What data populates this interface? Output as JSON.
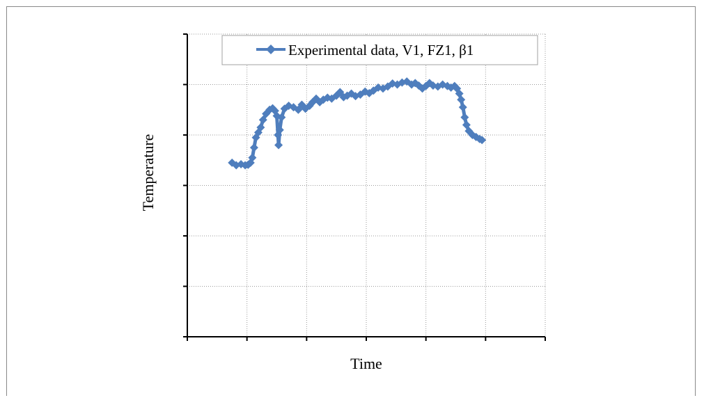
{
  "chart_data": {
    "type": "line",
    "title": "",
    "xlabel": "Time",
    "ylabel": "Temperature",
    "xlim": [
      0,
      6
    ],
    "ylim": [
      0,
      6
    ],
    "x_ticks_labeled": false,
    "y_ticks_labeled": false,
    "grid": true,
    "legend_position": "top-right",
    "series": [
      {
        "name": "Experimental data, V1, FZ1, β1",
        "color": "#4F7EBD",
        "marker": "diamond",
        "points": [
          [
            0.75,
            3.45
          ],
          [
            0.82,
            3.4
          ],
          [
            0.9,
            3.42
          ],
          [
            0.97,
            3.4
          ],
          [
            1.02,
            3.41
          ],
          [
            1.06,
            3.45
          ],
          [
            1.09,
            3.55
          ],
          [
            1.12,
            3.75
          ],
          [
            1.15,
            3.95
          ],
          [
            1.19,
            4.05
          ],
          [
            1.23,
            4.15
          ],
          [
            1.27,
            4.3
          ],
          [
            1.32,
            4.42
          ],
          [
            1.38,
            4.5
          ],
          [
            1.43,
            4.53
          ],
          [
            1.47,
            4.48
          ],
          [
            1.5,
            4.38
          ],
          [
            1.52,
            4.0
          ],
          [
            1.53,
            3.8
          ],
          [
            1.55,
            4.1
          ],
          [
            1.58,
            4.35
          ],
          [
            1.63,
            4.52
          ],
          [
            1.7,
            4.58
          ],
          [
            1.78,
            4.55
          ],
          [
            1.86,
            4.5
          ],
          [
            1.92,
            4.6
          ],
          [
            1.98,
            4.52
          ],
          [
            2.05,
            4.58
          ],
          [
            2.1,
            4.65
          ],
          [
            2.16,
            4.72
          ],
          [
            2.22,
            4.65
          ],
          [
            2.28,
            4.7
          ],
          [
            2.35,
            4.74
          ],
          [
            2.42,
            4.72
          ],
          [
            2.5,
            4.78
          ],
          [
            2.56,
            4.85
          ],
          [
            2.62,
            4.75
          ],
          [
            2.68,
            4.78
          ],
          [
            2.75,
            4.82
          ],
          [
            2.82,
            4.77
          ],
          [
            2.9,
            4.8
          ],
          [
            2.98,
            4.86
          ],
          [
            3.05,
            4.83
          ],
          [
            3.12,
            4.88
          ],
          [
            3.2,
            4.94
          ],
          [
            3.28,
            4.92
          ],
          [
            3.36,
            4.96
          ],
          [
            3.44,
            5.02
          ],
          [
            3.52,
            5.0
          ],
          [
            3.6,
            5.04
          ],
          [
            3.68,
            5.06
          ],
          [
            3.76,
            5.0
          ],
          [
            3.82,
            5.03
          ],
          [
            3.88,
            4.98
          ],
          [
            3.94,
            4.92
          ],
          [
            4.0,
            4.97
          ],
          [
            4.06,
            5.03
          ],
          [
            4.12,
            4.98
          ],
          [
            4.2,
            4.96
          ],
          [
            4.28,
            5.0
          ],
          [
            4.36,
            4.97
          ],
          [
            4.42,
            4.94
          ],
          [
            4.48,
            4.97
          ],
          [
            4.52,
            4.92
          ],
          [
            4.56,
            4.82
          ],
          [
            4.59,
            4.7
          ],
          [
            4.62,
            4.55
          ],
          [
            4.65,
            4.35
          ],
          [
            4.68,
            4.2
          ],
          [
            4.72,
            4.08
          ],
          [
            4.78,
            4.0
          ],
          [
            4.84,
            3.96
          ],
          [
            4.9,
            3.92
          ],
          [
            4.94,
            3.9
          ]
        ]
      }
    ]
  }
}
